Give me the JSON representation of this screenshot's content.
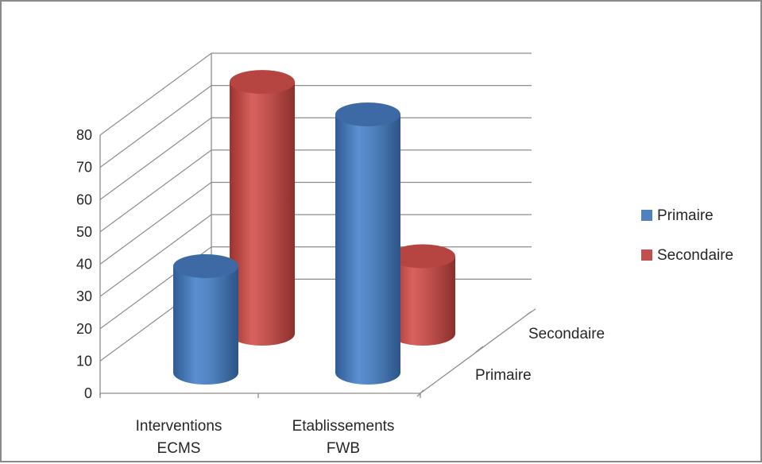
{
  "chart_data": {
    "type": "bar",
    "subtype": "3d-cylinder",
    "categories": [
      "Interventions\nECMS",
      "Etablissements\nFWB"
    ],
    "depth_categories": [
      "Primaire",
      "Secondaire"
    ],
    "series": [
      {
        "name": "Primaire",
        "values": [
          33,
          80
        ],
        "color": "#4F81BD"
      },
      {
        "name": "Secondaire",
        "values": [
          78,
          24
        ],
        "color": "#C0504D"
      }
    ],
    "yticks": [
      0,
      10,
      20,
      30,
      40,
      50,
      60,
      70,
      80
    ],
    "ylim": [
      0,
      80
    ],
    "grid": true,
    "legend": {
      "position": "right",
      "items": [
        "Primaire",
        "Secondaire"
      ]
    }
  }
}
